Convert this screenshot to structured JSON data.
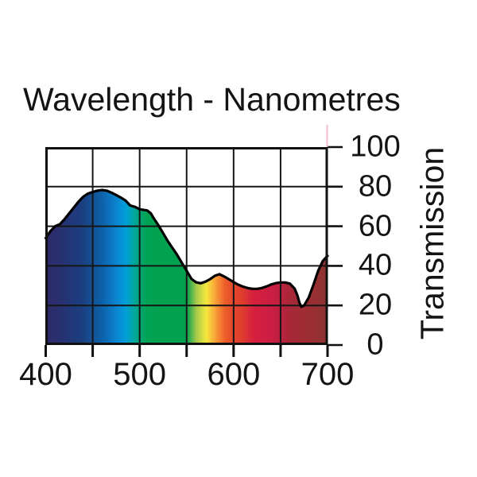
{
  "page": {
    "background": "#ffffff"
  },
  "chart": {
    "title": "Wavelength - Nanometres",
    "y_axis_title": "Transmission",
    "x_tick_labels": [
      "400",
      "500",
      "600",
      "700"
    ],
    "y_tick_labels": [
      "100",
      "80",
      "60",
      "40",
      "20",
      "0"
    ],
    "text_color": "#141414",
    "artifact_line_color": "#efadbf"
  },
  "chart_data": {
    "type": "area",
    "title": "Wavelength - Nanometres",
    "xlabel": "Wavelength - Nanometres",
    "ylabel": "Transmission",
    "xlim": [
      400,
      700
    ],
    "ylim": [
      0,
      100
    ],
    "x_ticks": [
      400,
      450,
      500,
      550,
      600,
      650,
      700
    ],
    "y_ticks": [
      0,
      20,
      40,
      60,
      80,
      100
    ],
    "grid": true,
    "legend": "none",
    "line_color": "#000000",
    "grid_color": "#161616",
    "border_color": "#111111",
    "series": [
      {
        "name": "Transmission",
        "x": [
          400,
          405,
          410,
          415,
          420,
          425,
          430,
          435,
          440,
          445,
          450,
          455,
          460,
          465,
          470,
          475,
          480,
          485,
          490,
          495,
          500,
          505,
          508,
          512,
          515,
          520,
          525,
          530,
          535,
          540,
          545,
          550,
          555,
          560,
          565,
          570,
          575,
          580,
          585,
          590,
          595,
          600,
          605,
          610,
          615,
          620,
          625,
          630,
          635,
          640,
          645,
          650,
          655,
          660,
          665,
          668,
          670,
          672,
          675,
          680,
          685,
          690,
          695,
          700
        ],
        "values": [
          54,
          57.5,
          60,
          61,
          63.5,
          66.5,
          69.5,
          72.5,
          75,
          76.5,
          77.3,
          78,
          78.3,
          78,
          77,
          75.8,
          74.5,
          73,
          70.5,
          69.8,
          68.6,
          68.2,
          68,
          66.5,
          64,
          60.5,
          56.5,
          52.5,
          49,
          45.5,
          41.5,
          37.5,
          33.5,
          31.7,
          31.2,
          32,
          33.3,
          35,
          35.8,
          34.6,
          33.2,
          31.8,
          30.5,
          29.5,
          28.8,
          28.4,
          28.4,
          28.8,
          29.6,
          30.6,
          31.3,
          31.6,
          31.6,
          31,
          28.5,
          25,
          21.5,
          19.3,
          20,
          24,
          30.5,
          37.5,
          42.5,
          45
        ]
      }
    ],
    "fill": "spectrum-gradient",
    "spectrum_stops": [
      [
        0.0,
        "#2f2a68"
      ],
      [
        0.05,
        "#283070"
      ],
      [
        0.13,
        "#1b3f80"
      ],
      [
        0.2,
        "#0d61a9"
      ],
      [
        0.25,
        "#0b84cf"
      ],
      [
        0.285,
        "#009fd8"
      ],
      [
        0.315,
        "#00a79b"
      ],
      [
        0.355,
        "#00a355"
      ],
      [
        0.4,
        "#00a14f"
      ],
      [
        0.5,
        "#00a14f"
      ],
      [
        0.535,
        "#a8c94a"
      ],
      [
        0.57,
        "#f5e93d"
      ],
      [
        0.6,
        "#f9a53a"
      ],
      [
        0.635,
        "#ee5f2a"
      ],
      [
        0.67,
        "#e2452e"
      ],
      [
        0.7,
        "#dd3c2e"
      ],
      [
        0.735,
        "#d6203e"
      ],
      [
        0.8,
        "#cb1e42"
      ],
      [
        0.835,
        "#bc203f"
      ],
      [
        0.87,
        "#a62837"
      ],
      [
        0.935,
        "#9c2e33"
      ],
      [
        1.0,
        "#8c3331"
      ]
    ]
  }
}
